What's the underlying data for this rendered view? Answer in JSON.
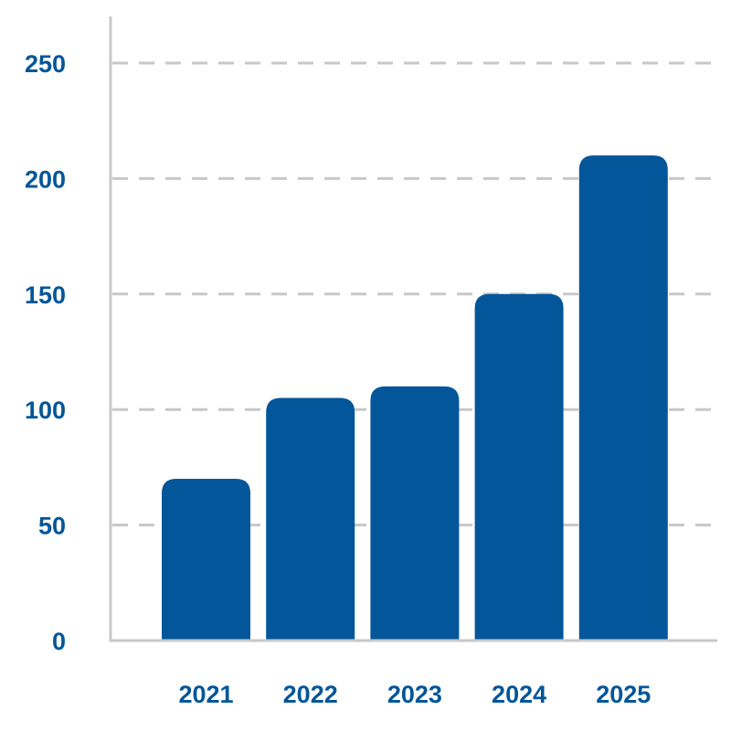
{
  "chart_data": {
    "type": "bar",
    "categories": [
      "2021",
      "2022",
      "2023",
      "2024",
      "2025"
    ],
    "values": [
      70,
      105,
      110,
      150,
      210
    ],
    "title": "",
    "xlabel": "",
    "ylabel": "",
    "ylim": [
      0,
      250
    ],
    "yticks": [
      "0",
      "50",
      "100",
      "150",
      "200",
      "250"
    ],
    "grid": true,
    "grid_style": "dashed",
    "legend": "none"
  },
  "colors": {
    "bar": "#035699",
    "label": "#035699",
    "axis": "#c8c8c8",
    "grid": "#c8c8c8"
  }
}
